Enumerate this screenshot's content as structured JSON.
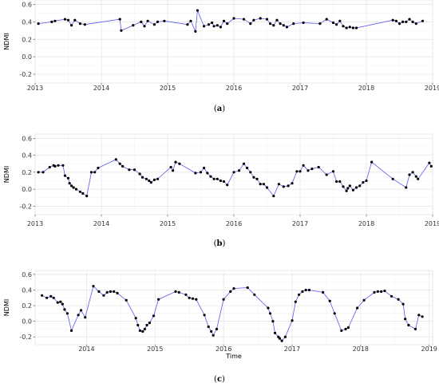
{
  "chart_data": [
    {
      "type": "line",
      "panel_caption": "(a)",
      "ylabel": "NDMI",
      "xlabel": "",
      "xlim": [
        2013.0,
        2019.0
      ],
      "ylim": [
        -0.3,
        0.65
      ],
      "x_ticks": [
        "2013",
        "2014",
        "2015",
        "2016",
        "2017",
        "2018",
        "2019"
      ],
      "y_ticks": [
        "-0.2",
        "0.0",
        "0.2",
        "0.4",
        "0.6"
      ],
      "grid": true,
      "series": [
        {
          "color": "#5a5af0",
          "marker_color": "#000000",
          "x": [
            2013.05,
            2013.25,
            2013.3,
            2013.45,
            2013.5,
            2013.55,
            2013.6,
            2013.68,
            2013.75,
            2014.28,
            2014.3,
            2014.48,
            2014.6,
            2014.65,
            2014.7,
            2014.8,
            2014.85,
            2014.95,
            2015.3,
            2015.35,
            2015.42,
            2015.45,
            2015.55,
            2015.62,
            2015.67,
            2015.7,
            2015.75,
            2015.8,
            2015.85,
            2015.9,
            2016.0,
            2016.15,
            2016.25,
            2016.3,
            2016.4,
            2016.5,
            2016.55,
            2016.6,
            2016.65,
            2016.7,
            2016.75,
            2016.8,
            2016.9,
            2017.05,
            2017.3,
            2017.4,
            2017.5,
            2017.55,
            2017.6,
            2017.65,
            2017.7,
            2017.75,
            2017.8,
            2017.85,
            2018.4,
            2018.45,
            2018.5,
            2018.55,
            2018.6,
            2018.65,
            2018.7,
            2018.75,
            2018.85
          ],
          "y": [
            0.38,
            0.4,
            0.41,
            0.43,
            0.42,
            0.36,
            0.42,
            0.38,
            0.37,
            0.43,
            0.3,
            0.36,
            0.4,
            0.35,
            0.41,
            0.37,
            0.4,
            0.41,
            0.37,
            0.41,
            0.29,
            0.53,
            0.35,
            0.37,
            0.39,
            0.35,
            0.36,
            0.34,
            0.41,
            0.38,
            0.44,
            0.43,
            0.38,
            0.42,
            0.44,
            0.43,
            0.38,
            0.36,
            0.42,
            0.38,
            0.36,
            0.34,
            0.38,
            0.39,
            0.38,
            0.43,
            0.39,
            0.37,
            0.41,
            0.35,
            0.33,
            0.34,
            0.33,
            0.33,
            0.42,
            0.41,
            0.38,
            0.4,
            0.4,
            0.43,
            0.4,
            0.38,
            0.41
          ]
        }
      ]
    },
    {
      "type": "line",
      "panel_caption": "(b)",
      "ylabel": "NDMI",
      "xlabel": "",
      "xlim": [
        2013.0,
        2019.0
      ],
      "ylim": [
        -0.3,
        0.65
      ],
      "x_ticks": [
        "2013",
        "2014",
        "2015",
        "2016",
        "2017",
        "2018",
        "2019"
      ],
      "y_ticks": [
        "-0.2",
        "0.0",
        "0.2",
        "0.4",
        "0.6"
      ],
      "grid": true,
      "series": [
        {
          "color": "#5a5af0",
          "marker_color": "#000000",
          "x": [
            2013.05,
            2013.12,
            2013.22,
            2013.28,
            2013.3,
            2013.35,
            2013.42,
            2013.45,
            2013.5,
            2013.52,
            2013.55,
            2013.58,
            2013.62,
            2013.68,
            2013.72,
            2013.78,
            2013.85,
            2013.9,
            2013.95,
            2014.22,
            2014.28,
            2014.32,
            2014.42,
            2014.5,
            2014.58,
            2014.62,
            2014.68,
            2014.72,
            2014.75,
            2014.8,
            2014.85,
            2015.05,
            2015.08,
            2015.12,
            2015.18,
            2015.42,
            2015.5,
            2015.55,
            2015.6,
            2015.65,
            2015.7,
            2015.75,
            2015.8,
            2015.85,
            2015.9,
            2016.0,
            2016.08,
            2016.15,
            2016.2,
            2016.25,
            2016.3,
            2016.35,
            2016.4,
            2016.45,
            2016.5,
            2016.6,
            2016.68,
            2016.75,
            2016.82,
            2016.88,
            2016.95,
            2017.0,
            2017.05,
            2017.12,
            2017.18,
            2017.28,
            2017.4,
            2017.5,
            2017.55,
            2017.6,
            2017.65,
            2017.7,
            2017.72,
            2017.75,
            2017.8,
            2017.85,
            2017.9,
            2017.95,
            2018.0,
            2018.08,
            2018.4,
            2018.6,
            2018.65,
            2018.7,
            2018.75,
            2018.78,
            2018.95,
            2018.98
          ],
          "y": [
            0.2,
            0.2,
            0.26,
            0.28,
            0.27,
            0.28,
            0.28,
            0.16,
            0.13,
            0.07,
            0.04,
            0.02,
            0.0,
            -0.03,
            -0.05,
            -0.08,
            0.2,
            0.2,
            0.25,
            0.35,
            0.3,
            0.27,
            0.23,
            0.23,
            0.18,
            0.14,
            0.12,
            0.1,
            0.08,
            0.11,
            0.12,
            0.26,
            0.22,
            0.32,
            0.3,
            0.19,
            0.2,
            0.25,
            0.19,
            0.15,
            0.12,
            0.12,
            0.1,
            0.09,
            0.05,
            0.2,
            0.22,
            0.3,
            0.25,
            0.2,
            0.14,
            0.12,
            0.06,
            0.06,
            0.02,
            -0.08,
            0.06,
            0.03,
            0.04,
            0.07,
            0.21,
            0.21,
            0.28,
            0.22,
            0.24,
            0.26,
            0.17,
            0.21,
            0.09,
            0.09,
            0.03,
            -0.02,
            0.01,
            0.04,
            -0.01,
            0.02,
            0.04,
            0.08,
            0.1,
            0.32,
            0.12,
            0.02,
            0.17,
            0.2,
            0.15,
            0.12,
            0.31,
            0.27
          ]
        }
      ]
    },
    {
      "type": "line",
      "panel_caption": "(c)",
      "ylabel": "NDMI",
      "xlabel": "Time",
      "xlim": [
        2013.25,
        2019.05
      ],
      "ylim": [
        -0.3,
        0.65
      ],
      "x_ticks": [
        "2014",
        "2015",
        "2016",
        "2017",
        "2018",
        "2019"
      ],
      "y_ticks": [
        "-0.2",
        "0.0",
        "0.2",
        "0.4",
        "0.6"
      ],
      "grid": true,
      "series": [
        {
          "color": "#5a5af0",
          "marker_color": "#000000",
          "x": [
            2013.35,
            2013.42,
            2013.48,
            2013.52,
            2013.58,
            2013.62,
            2013.65,
            2013.68,
            2013.72,
            2013.78,
            2013.88,
            2013.92,
            2013.98,
            2014.1,
            2014.18,
            2014.25,
            2014.3,
            2014.35,
            2014.4,
            2014.45,
            2014.58,
            2014.72,
            2014.75,
            2014.78,
            2014.82,
            2014.85,
            2014.88,
            2014.92,
            2014.98,
            2015.05,
            2015.3,
            2015.35,
            2015.45,
            2015.5,
            2015.55,
            2015.6,
            2015.72,
            2015.78,
            2015.82,
            2015.85,
            2015.9,
            2016.0,
            2016.1,
            2016.15,
            2016.35,
            2016.45,
            2016.65,
            2016.68,
            2016.72,
            2016.75,
            2016.8,
            2016.82,
            2016.85,
            2016.9,
            2017.0,
            2017.05,
            2017.1,
            2017.15,
            2017.2,
            2017.25,
            2017.45,
            2017.55,
            2017.62,
            2017.72,
            2017.78,
            2017.82,
            2017.95,
            2018.05,
            2018.2,
            2018.25,
            2018.3,
            2018.35,
            2018.45,
            2018.55,
            2018.62,
            2018.65,
            2018.7,
            2018.8,
            2018.85,
            2018.9
          ],
          "y": [
            0.33,
            0.3,
            0.32,
            0.3,
            0.24,
            0.25,
            0.22,
            0.15,
            0.1,
            -0.12,
            0.08,
            0.14,
            0.05,
            0.45,
            0.38,
            0.33,
            0.37,
            0.38,
            0.38,
            0.36,
            0.27,
            0.04,
            -0.05,
            -0.12,
            -0.13,
            -0.1,
            -0.05,
            -0.02,
            0.07,
            0.28,
            0.38,
            0.37,
            0.34,
            0.3,
            0.29,
            0.28,
            0.08,
            -0.07,
            -0.13,
            -0.18,
            -0.1,
            0.28,
            0.38,
            0.42,
            0.43,
            0.34,
            0.17,
            0.1,
            0.0,
            -0.15,
            -0.2,
            -0.22,
            -0.25,
            -0.2,
            0.01,
            0.25,
            0.34,
            0.38,
            0.4,
            0.4,
            0.37,
            0.26,
            0.1,
            -0.12,
            -0.1,
            -0.08,
            0.17,
            0.27,
            0.37,
            0.38,
            0.38,
            0.39,
            0.32,
            0.28,
            0.22,
            0.03,
            -0.05,
            -0.1,
            0.08,
            0.06
          ]
        }
      ]
    }
  ]
}
